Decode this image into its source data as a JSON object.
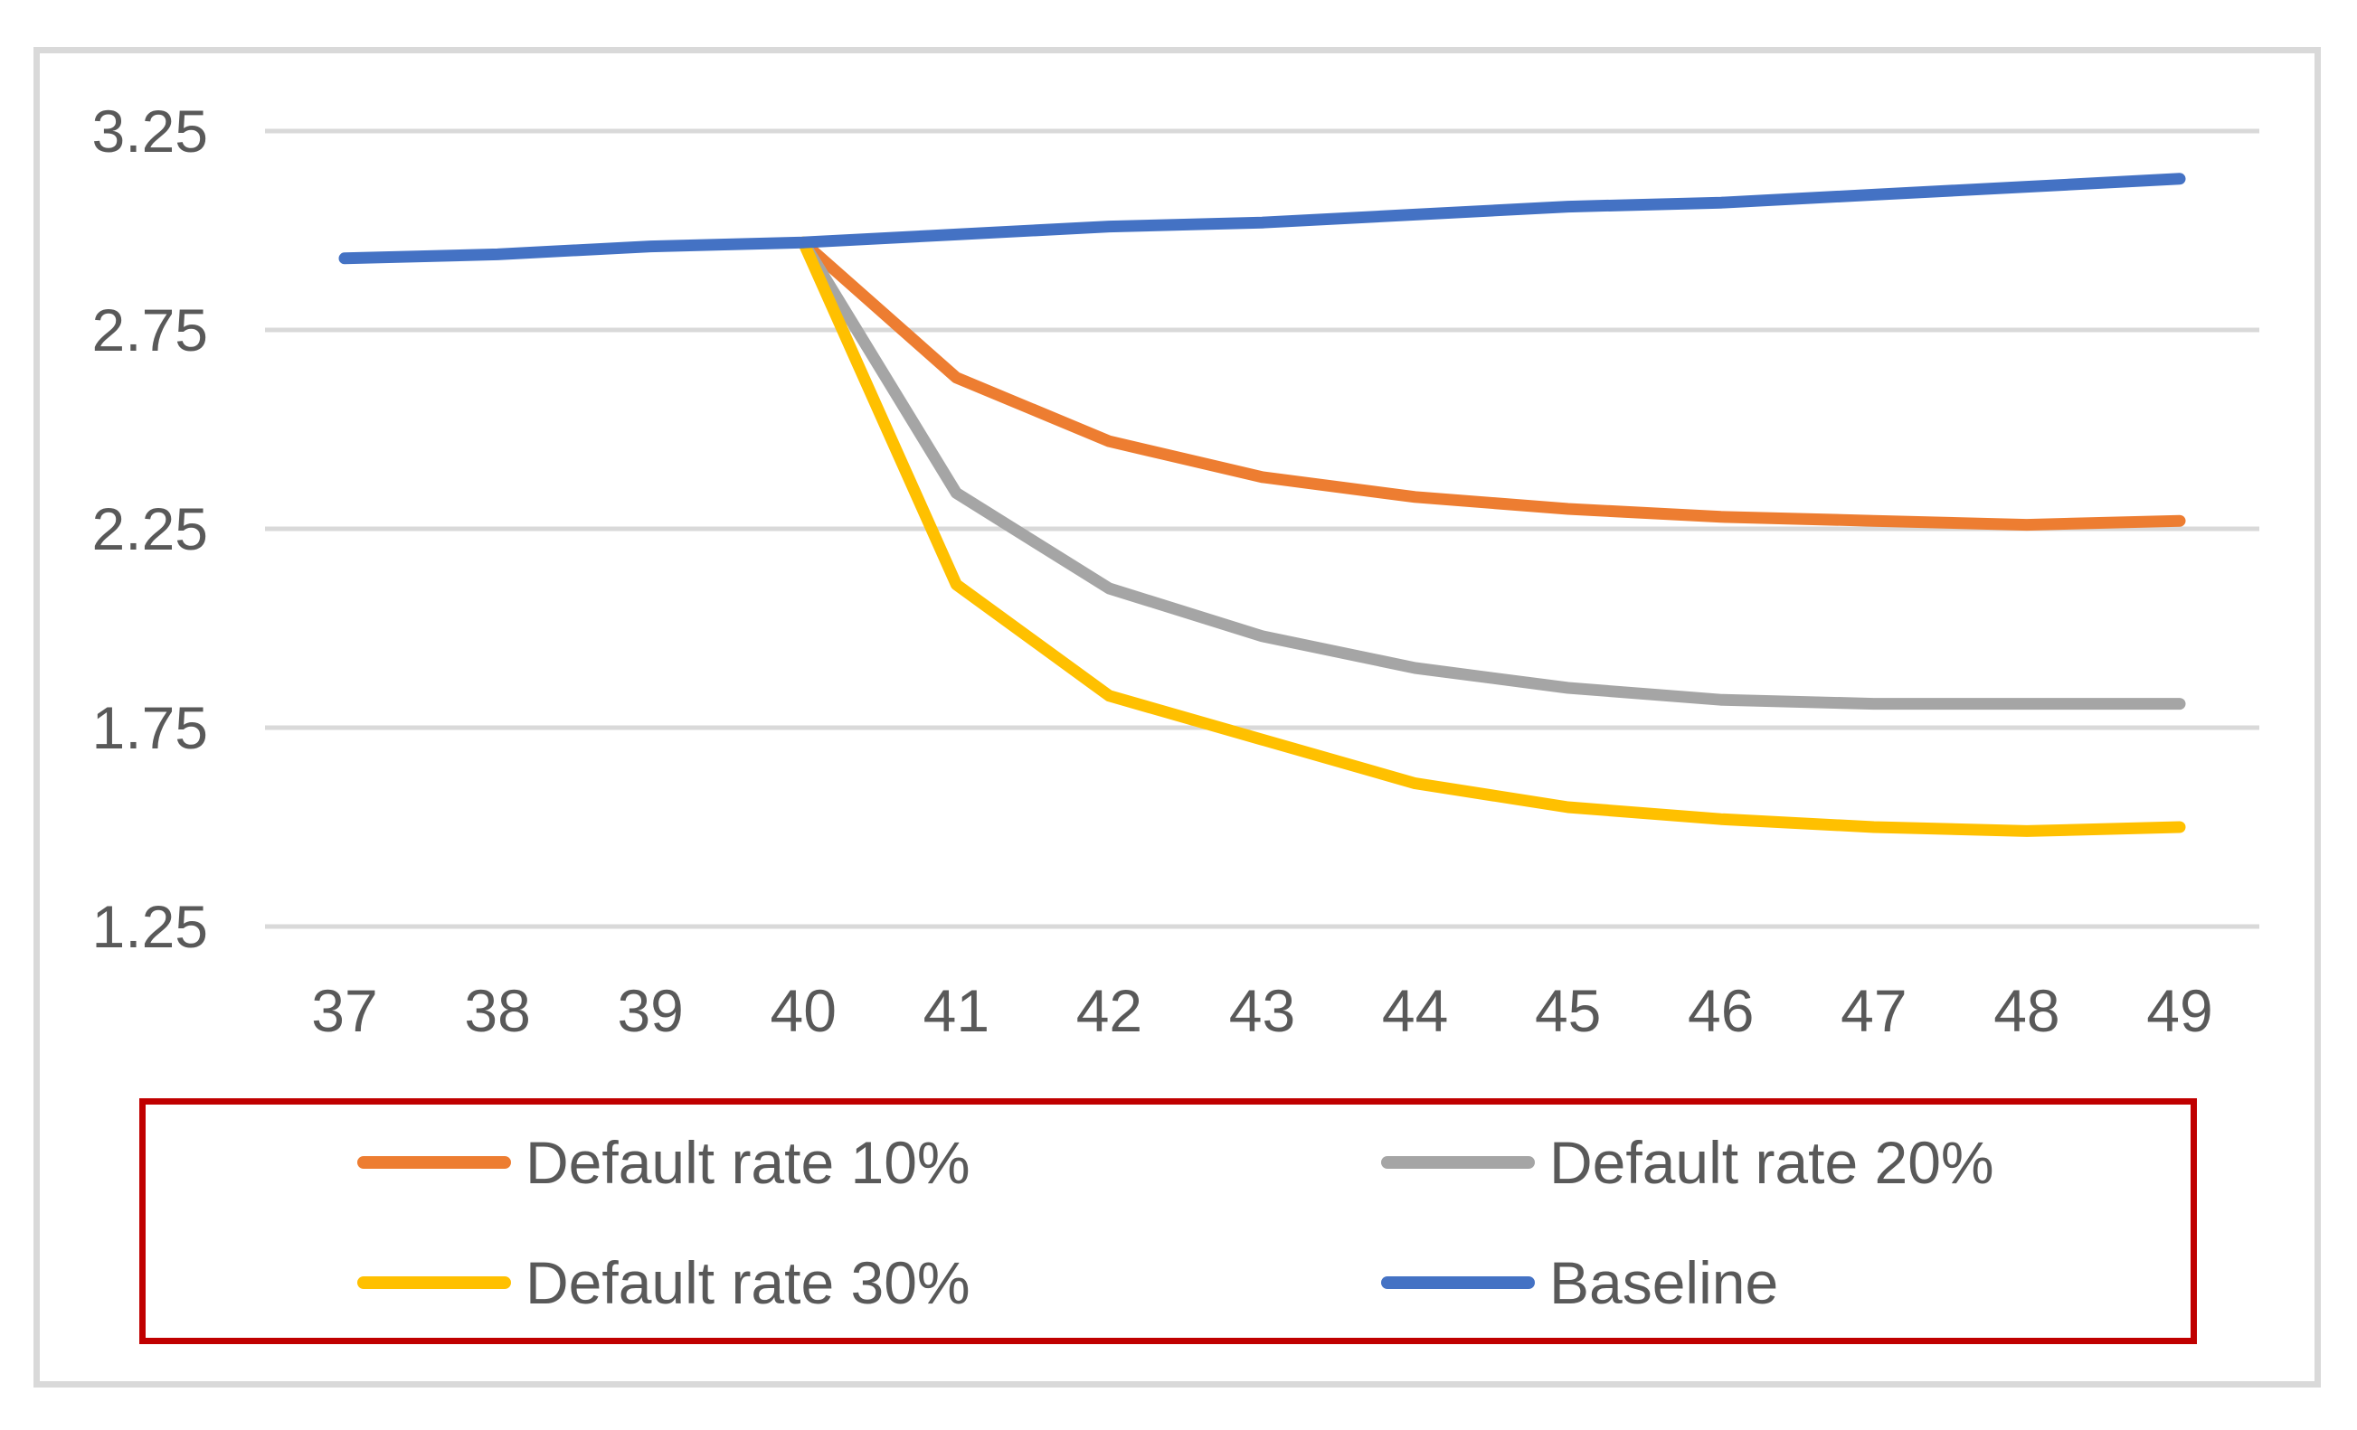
{
  "chart_data": {
    "type": "line",
    "title": "",
    "xlabel": "",
    "ylabel": "",
    "x": [
      37,
      38,
      39,
      40,
      41,
      42,
      43,
      44,
      45,
      46,
      47,
      48,
      49
    ],
    "y_ticks": [
      3.25,
      2.75,
      2.25,
      1.75,
      1.25
    ],
    "ylim": [
      1.0,
      3.4
    ],
    "grid": true,
    "grid_color": "#D9D9D9",
    "axis_text_color": "#595959",
    "legend_position": "bottom",
    "legend_border_color": "#C00000",
    "series": [
      {
        "name": "Default rate 10%",
        "color": "#ED7D31",
        "values": [
          null,
          null,
          null,
          2.97,
          2.63,
          2.47,
          2.38,
          2.33,
          2.3,
          2.28,
          2.27,
          2.26,
          2.27
        ]
      },
      {
        "name": "Default rate 20%",
        "color": "#A5A5A5",
        "values": [
          null,
          null,
          null,
          2.97,
          2.34,
          2.1,
          1.98,
          1.9,
          1.85,
          1.82,
          1.81,
          1.81,
          1.81
        ]
      },
      {
        "name": "Default rate 30%",
        "color": "#FFC000",
        "values": [
          null,
          null,
          null,
          2.97,
          2.11,
          1.83,
          1.72,
          1.61,
          1.55,
          1.52,
          1.5,
          1.49,
          1.5
        ]
      },
      {
        "name": "Baseline",
        "color": "#4472C4",
        "values": [
          2.93,
          2.94,
          2.96,
          2.97,
          2.99,
          3.01,
          3.02,
          3.04,
          3.06,
          3.07,
          3.09,
          3.11,
          3.13
        ]
      }
    ]
  }
}
